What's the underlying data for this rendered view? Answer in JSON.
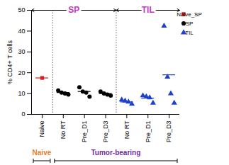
{
  "chart_data": {
    "type": "scatter",
    "ylabel": "% CD4+ T cells",
    "categories": [
      "Naive",
      "No RT",
      "Pre_D1",
      "Pre_D3",
      "No RT",
      "Pre_D1",
      "Pre_D3"
    ],
    "ylim": [
      0,
      50
    ],
    "yticks": [
      0,
      10,
      20,
      30,
      40,
      50
    ],
    "legend": "right",
    "series": [
      {
        "name": "Naive_SP",
        "color": "#e41a1c",
        "marker": "square",
        "values": [
          [
            17.5
          ],
          null,
          null,
          null,
          null,
          null,
          null
        ],
        "means": [
          17.5,
          null,
          null,
          null,
          null,
          null,
          null
        ]
      },
      {
        "name": "SP",
        "color": "#000000",
        "marker": "circle",
        "values": [
          null,
          [
            11.5,
            10.5,
            10,
            9.5
          ],
          [
            13,
            11,
            10.5,
            8.5
          ],
          [
            11,
            10,
            9.5,
            9
          ],
          null,
          null,
          null
        ],
        "means": [
          null,
          10.5,
          11,
          10,
          null,
          null,
          null
        ]
      },
      {
        "name": "TIL",
        "color": "#1f3fcf",
        "marker": "triangle",
        "values": [
          null,
          null,
          null,
          null,
          [
            7,
            6.5,
            6,
            5
          ],
          [
            9,
            8.5,
            8,
            5.5
          ],
          [
            42.5,
            18,
            10,
            5.5
          ]
        ],
        "means": [
          null,
          null,
          null,
          null,
          6,
          7.8,
          19
        ]
      }
    ],
    "annotations": [
      {
        "text": "SP",
        "color": "#cc33cc",
        "span": [
          0,
          3
        ],
        "side": "top"
      },
      {
        "text": "TIL",
        "color": "#cc33cc",
        "span": [
          4,
          6
        ],
        "side": "top"
      },
      {
        "text": "Naive",
        "color": "#e8802a",
        "span": [
          0,
          0
        ],
        "side": "bottom"
      },
      {
        "text": "Tumor-bearing",
        "color": "#7030a0",
        "span": [
          1,
          6
        ],
        "side": "bottom"
      }
    ]
  }
}
